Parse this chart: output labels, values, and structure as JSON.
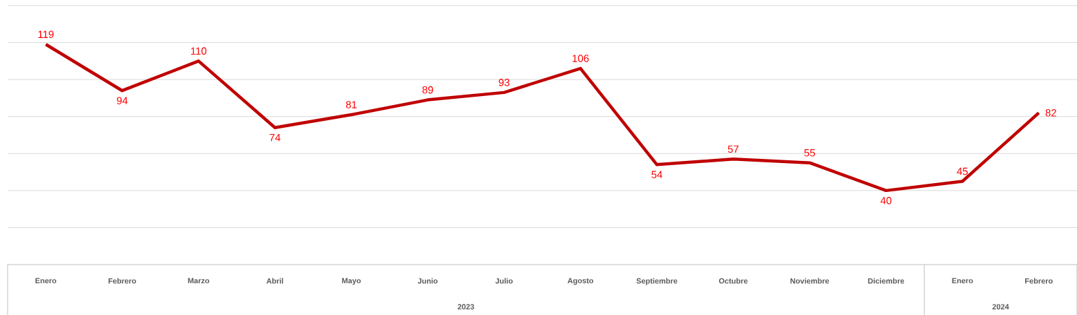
{
  "chart_data": {
    "type": "line",
    "categories": [
      "Enero",
      "Febrero",
      "Marzo",
      "Abril",
      "Mayo",
      "Junio",
      "Julio",
      "Agosto",
      "Septiembre",
      "Octubre",
      "Noviembre",
      "Diciembre",
      "Enero",
      "Febrero"
    ],
    "values": [
      119,
      94,
      110,
      74,
      81,
      89,
      93,
      106,
      54,
      57,
      55,
      40,
      45,
      82
    ],
    "color": "#c00000",
    "ylim": [
      0,
      140
    ],
    "yticks": [
      {
        "value": 20,
        "label": null
      },
      {
        "value": 40,
        "label": null
      },
      {
        "value": 60,
        "label": null
      },
      {
        "value": 80,
        "label": null
      },
      {
        "value": 100,
        "label": null
      },
      {
        "value": 120,
        "label": null
      },
      {
        "value": 140,
        "label": null
      }
    ],
    "grid": "y",
    "tick_labels": "x",
    "data_labels": true,
    "annotations": [
      "2023",
      "2024"
    ]
  }
}
